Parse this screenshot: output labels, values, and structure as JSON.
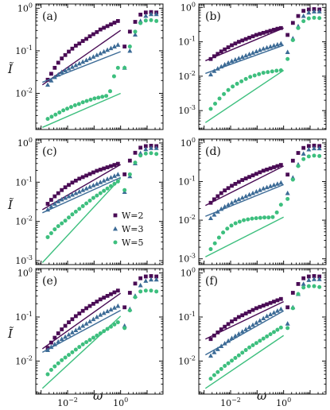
{
  "figure": {
    "ylabel": "Ĩ",
    "xlabel": "ω"
  },
  "chart_data": {
    "type": "scatter",
    "x_scale": "log",
    "y_scale": "log",
    "xlim_log10": [
      -3.2,
      1.6
    ],
    "series_colors": {
      "W=2": "#4a0c55",
      "W=3": "#3c6b96",
      "W=5": "#3dbf7e"
    },
    "legend": {
      "panel": "c",
      "placement": "lower-right",
      "entries": [
        {
          "label": "W=2",
          "marker": "square",
          "color": "#4a0c55"
        },
        {
          "label": "W=3",
          "marker": "triangle",
          "color": "#3c6b96"
        },
        {
          "label": "W=5",
          "marker": "circle",
          "color": "#3dbf7e"
        }
      ]
    },
    "panels": [
      {
        "label": "(a)",
        "ylim_log10": [
          -2.85,
          0.1
        ],
        "yticks": [
          "10^-2",
          "10^-1",
          "10^0"
        ],
        "series": [
          {
            "name": "W=2",
            "logy_points": [
              -1.68,
              -1.54,
              -1.4,
              -1.28,
              -1.18,
              -1.1,
              -1.02,
              -0.95,
              -0.88,
              -0.83,
              -0.77,
              -0.72,
              -0.66,
              -0.61,
              -0.56,
              -0.5,
              -0.46,
              -0.42,
              -0.38,
              -0.34,
              -0.3
            ],
            "logy_fit": [
              -1.8,
              -0.52
            ],
            "logy_tail": [
              -0.9,
              -0.55,
              -0.32,
              -0.15,
              -0.1,
              -0.09,
              -0.1
            ]
          },
          {
            "name": "W=3",
            "logy_points": [
              -1.8,
              -1.7,
              -1.62,
              -1.56,
              -1.5,
              -1.46,
              -1.42,
              -1.38,
              -1.34,
              -1.3,
              -1.26,
              -1.22,
              -1.18,
              -1.14,
              -1.1,
              -1.06,
              -1.02,
              -0.98,
              -0.94,
              -0.9,
              -0.86
            ],
            "logy_fit": [
              -1.74,
              -1.02
            ],
            "logy_tail": [
              -1.4,
              -1.0,
              -0.62,
              -0.3,
              -0.18,
              -0.14,
              -0.14
            ]
          },
          {
            "name": "W=5",
            "logy_points": [
              -2.6,
              -2.55,
              -2.5,
              -2.45,
              -2.4,
              -2.36,
              -2.32,
              -2.28,
              -2.25,
              -2.21,
              -2.18,
              -2.15,
              -2.12,
              -2.1,
              -2.08,
              -2.06,
              -1.95,
              -1.6,
              -1.4
            ],
            "logy_fit": [
              -2.8,
              -2.0
            ],
            "logy_tail": [
              -1.4,
              -0.9,
              -0.55,
              -0.35,
              -0.29,
              -0.28,
              -0.3
            ]
          }
        ]
      },
      {
        "label": "(b)",
        "ylim_log10": [
          -3.55,
          0.1
        ],
        "yticks": [
          "10^-3",
          "10^-2",
          "10^-1",
          "10^0"
        ],
        "series": [
          {
            "name": "W=2",
            "logy_points": [
              -1.5,
              -1.42,
              -1.35,
              -1.28,
              -1.22,
              -1.16,
              -1.1,
              -1.05,
              -1.0,
              -0.96,
              -0.92,
              -0.88,
              -0.84,
              -0.8,
              -0.77,
              -0.74,
              -0.71,
              -0.68,
              -0.65,
              -0.62,
              -0.6
            ],
            "logy_fit": [
              -1.55,
              -0.6
            ],
            "logy_tail": [
              -0.8,
              -0.45,
              -0.25,
              -0.1,
              -0.06,
              -0.05,
              -0.06
            ]
          },
          {
            "name": "W=3",
            "logy_points": [
              -1.95,
              -1.85,
              -1.78,
              -1.72,
              -1.66,
              -1.61,
              -1.56,
              -1.52,
              -1.48,
              -1.44,
              -1.4,
              -1.36,
              -1.32,
              -1.28,
              -1.24,
              -1.2,
              -1.17,
              -1.14,
              -1.11,
              -1.08,
              -1.05
            ],
            "logy_fit": [
              -1.92,
              -1.1
            ],
            "logy_tail": [
              -1.3,
              -0.9,
              -0.55,
              -0.25,
              -0.15,
              -0.12,
              -0.12
            ]
          },
          {
            "name": "W=5",
            "logy_points": [
              -2.95,
              -2.8,
              -2.65,
              -2.52,
              -2.4,
              -2.3,
              -2.22,
              -2.15,
              -2.08,
              -2.02,
              -1.98,
              -1.94,
              -1.9,
              -1.88,
              -1.86,
              -1.84,
              -1.83
            ],
            "logy_fit": [
              -3.35,
              -1.83
            ],
            "logy_tail": [
              -1.5,
              -0.95,
              -0.6,
              -0.4,
              -0.32,
              -0.3,
              -0.31
            ]
          }
        ]
      },
      {
        "label": "(c)",
        "ylim_log10": [
          -3.1,
          0.1
        ],
        "yticks": [
          "10^-3",
          "10^-2",
          "10^-1",
          "10^0"
        ],
        "series": [
          {
            "name": "W=2",
            "logy_points": [
              -1.55,
              -1.45,
              -1.36,
              -1.28,
              -1.2,
              -1.13,
              -1.07,
              -1.01,
              -0.96,
              -0.91,
              -0.87,
              -0.83,
              -0.79,
              -0.75,
              -0.71,
              -0.68,
              -0.65,
              -0.62,
              -0.59,
              -0.56,
              -0.53
            ],
            "logy_fit": [
              -1.7,
              -0.55
            ],
            "logy_tail": [
              -0.8,
              -0.45,
              -0.25,
              -0.12,
              -0.08,
              -0.07,
              -0.08
            ]
          },
          {
            "name": "W=3",
            "logy_points": [
              -1.7,
              -1.62,
              -1.55,
              -1.49,
              -1.44,
              -1.4,
              -1.36,
              -1.32,
              -1.28,
              -1.24,
              -1.2,
              -1.16,
              -1.12,
              -1.08,
              -1.04,
              -1.0,
              -0.96,
              -0.92,
              -0.88,
              -0.84,
              -0.8
            ],
            "logy_fit": [
              -1.78,
              -0.88
            ],
            "logy_tail": [
              -1.25,
              -0.85,
              -0.52,
              -0.26,
              -0.16,
              -0.13,
              -0.13
            ]
          },
          {
            "name": "W=5",
            "logy_points": [
              -2.4,
              -2.3,
              -2.2,
              -2.12,
              -2.05,
              -1.98,
              -1.9,
              -1.82,
              -1.75,
              -1.68,
              -1.61,
              -1.54,
              -1.47,
              -1.4,
              -1.34,
              -1.28,
              -1.22,
              -1.16,
              -1.1,
              -1.04,
              -0.98
            ],
            "logy_fit": [
              -3.05,
              -0.9
            ],
            "logy_tail": [
              -1.2,
              -0.8,
              -0.5,
              -0.32,
              -0.27,
              -0.26,
              -0.28
            ]
          }
        ]
      },
      {
        "label": "(d)",
        "ylim_log10": [
          -3.15,
          0.1
        ],
        "yticks": [
          "10^-3",
          "10^-2",
          "10^-1",
          "10^0"
        ],
        "series": [
          {
            "name": "W=2",
            "logy_points": [
              -1.55,
              -1.46,
              -1.38,
              -1.3,
              -1.23,
              -1.17,
              -1.11,
              -1.06,
              -1.01,
              -0.96,
              -0.92,
              -0.88,
              -0.84,
              -0.8,
              -0.76,
              -0.72,
              -0.69,
              -0.66,
              -0.63,
              -0.6,
              -0.57
            ],
            "logy_fit": [
              -1.62,
              -0.6
            ],
            "logy_tail": [
              -0.82,
              -0.46,
              -0.26,
              -0.13,
              -0.08,
              -0.07,
              -0.08
            ]
          },
          {
            "name": "W=3",
            "logy_points": [
              -1.95,
              -1.86,
              -1.78,
              -1.71,
              -1.65,
              -1.6,
              -1.55,
              -1.5,
              -1.46,
              -1.42,
              -1.38,
              -1.34,
              -1.3,
              -1.26,
              -1.22,
              -1.18,
              -1.15,
              -1.12,
              -1.09,
              -1.06,
              -1.03
            ],
            "logy_fit": [
              -1.9,
              -1.08
            ],
            "logy_tail": [
              -1.3,
              -0.9,
              -0.56,
              -0.28,
              -0.17,
              -0.14,
              -0.14
            ]
          },
          {
            "name": "W=5",
            "logy_points": [
              -2.75,
              -2.6,
              -2.45,
              -2.32,
              -2.22,
              -2.14,
              -2.08,
              -2.04,
              -2.0,
              -1.98,
              -1.96,
              -1.95,
              -1.94,
              -1.93,
              -1.93,
              -1.92,
              -1.8,
              -1.6
            ],
            "logy_fit": [
              -2.95,
              -1.92
            ],
            "logy_tail": [
              -1.45,
              -0.95,
              -0.6,
              -0.42,
              -0.35,
              -0.33,
              -0.34
            ]
          }
        ]
      },
      {
        "label": "(e)",
        "ylim_log10": [
          -2.75,
          0.1
        ],
        "yticks": [
          "10^-2",
          "10^-1",
          "10^0"
        ],
        "series": [
          {
            "name": "W=2",
            "logy_points": [
              -1.7,
              -1.58,
              -1.47,
              -1.37,
              -1.28,
              -1.2,
              -1.12,
              -1.05,
              -0.98,
              -0.92,
              -0.86,
              -0.8,
              -0.75,
              -0.7,
              -0.65,
              -0.6,
              -0.56,
              -0.52,
              -0.48,
              -0.44,
              -0.4
            ],
            "logy_fit": [
              -1.72,
              -0.46
            ],
            "logy_tail": [
              -0.78,
              -0.45,
              -0.24,
              -0.12,
              -0.08,
              -0.07,
              -0.08
            ]
          },
          {
            "name": "W=3",
            "logy_points": [
              -1.75,
              -1.68,
              -1.62,
              -1.56,
              -1.5,
              -1.45,
              -1.4,
              -1.35,
              -1.3,
              -1.25,
              -1.2,
              -1.15,
              -1.1,
              -1.05,
              -1.0,
              -0.95,
              -0.91,
              -0.87,
              -0.83,
              -0.79,
              -0.75
            ],
            "logy_fit": [
              -1.8,
              -0.85
            ],
            "logy_tail": [
              -1.2,
              -0.82,
              -0.52,
              -0.28,
              -0.18,
              -0.15,
              -0.15
            ]
          },
          {
            "name": "W=5",
            "logy_points": [
              -2.3,
              -2.2,
              -2.12,
              -2.05,
              -1.98,
              -1.92,
              -1.86,
              -1.8,
              -1.74,
              -1.68,
              -1.62,
              -1.57,
              -1.52,
              -1.47,
              -1.42,
              -1.37,
              -1.32,
              -1.27,
              -1.22,
              -1.17,
              -1.12
            ],
            "logy_fit": [
              -2.62,
              -0.98
            ],
            "logy_tail": [
              -1.25,
              -0.85,
              -0.55,
              -0.42,
              -0.4,
              -0.4,
              -0.42
            ]
          }
        ]
      },
      {
        "label": "(f)",
        "ylim_log10": [
          -2.75,
          0.1
        ],
        "yticks": [
          "10^-2",
          "10^-1",
          "10^0"
        ],
        "series": [
          {
            "name": "W=2",
            "logy_points": [
              -1.5,
              -1.42,
              -1.35,
              -1.28,
              -1.22,
              -1.16,
              -1.1,
              -1.05,
              -1.0,
              -0.96,
              -0.92,
              -0.88,
              -0.84,
              -0.8,
              -0.77,
              -0.74,
              -0.71,
              -0.68,
              -0.65,
              -0.62,
              -0.59
            ],
            "logy_fit": [
              -1.5,
              -0.65
            ],
            "logy_tail": [
              -0.78,
              -0.45,
              -0.25,
              -0.12,
              -0.08,
              -0.07,
              -0.08
            ]
          },
          {
            "name": "W=3",
            "logy_points": [
              -1.88,
              -1.8,
              -1.73,
              -1.66,
              -1.6,
              -1.54,
              -1.48,
              -1.43,
              -1.38,
              -1.33,
              -1.28,
              -1.23,
              -1.18,
              -1.13,
              -1.08,
              -1.03,
              -0.98,
              -0.94,
              -0.9,
              -0.86,
              -0.82
            ],
            "logy_fit": [
              -1.86,
              -0.86
            ],
            "logy_tail": [
              -1.15,
              -0.78,
              -0.48,
              -0.25,
              -0.16,
              -0.14,
              -0.14
            ]
          },
          {
            "name": "W=5",
            "logy_points": [
              -2.4,
              -2.32,
              -2.25,
              -2.18,
              -2.11,
              -2.05,
              -1.99,
              -1.93,
              -1.87,
              -1.81,
              -1.75,
              -1.69,
              -1.64,
              -1.59,
              -1.54,
              -1.49,
              -1.44,
              -1.39,
              -1.34,
              -1.29,
              -1.24
            ],
            "logy_fit": [
              -2.62,
              -1.42
            ],
            "logy_tail": [
              -1.25,
              -0.8,
              -0.48,
              -0.33,
              -0.3,
              -0.3,
              -0.32
            ]
          }
        ]
      }
    ]
  }
}
